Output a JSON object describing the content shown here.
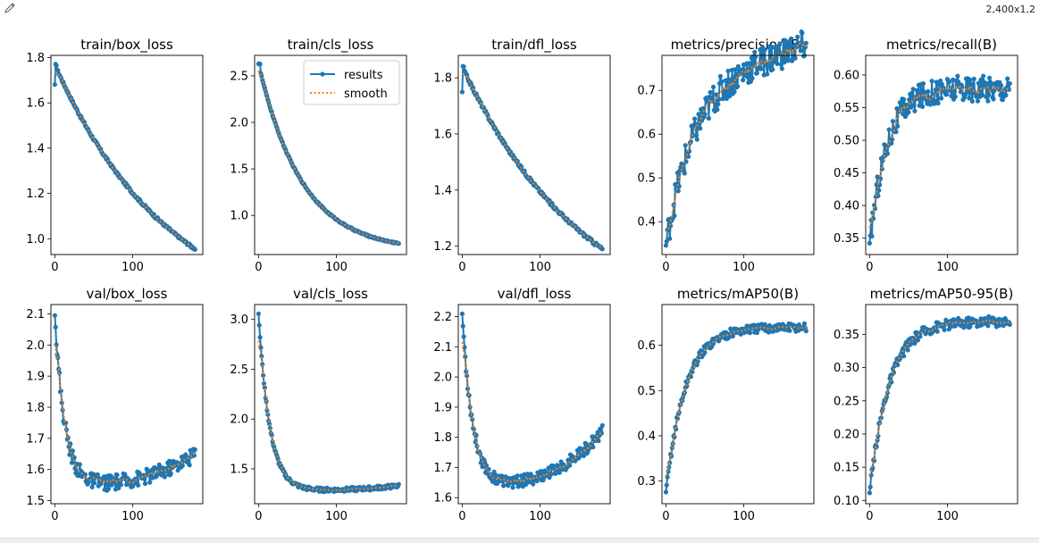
{
  "toolbar": {
    "icon": "pencil-icon",
    "dimensions_text": "2,400x1,2"
  },
  "colors": {
    "results": "#1f77b4",
    "smooth": "#ff7f0e",
    "axis": "#000000"
  },
  "legend": {
    "results": "results",
    "smooth": "smooth"
  },
  "chart_data": [
    {
      "type": "line",
      "title": "train/box_loss",
      "xlim": [
        -5,
        190
      ],
      "ylim": [
        0.93,
        1.81
      ],
      "xticks": [
        0,
        100
      ],
      "yticks": [
        1.0,
        1.2,
        1.4,
        1.6,
        1.8
      ],
      "ytick_labels": [
        "1.0",
        "1.2",
        "1.4",
        "1.6",
        "1.8"
      ],
      "shape": "decay",
      "start": 1.68,
      "peak": 1.77,
      "end": 0.955,
      "curve": 1.2,
      "noise": 0.006
    },
    {
      "type": "line",
      "title": "train/cls_loss",
      "xlim": [
        -5,
        190
      ],
      "ylim": [
        0.58,
        2.72
      ],
      "xticks": [
        0,
        100
      ],
      "yticks": [
        1.0,
        1.5,
        2.0,
        2.5
      ],
      "ytick_labels": [
        "1.0",
        "1.5",
        "2.0",
        "2.5"
      ],
      "shape": "decay",
      "start": 2.63,
      "peak": 2.63,
      "end": 0.7,
      "curve": 3.2,
      "noise": 0.008,
      "legend": true
    },
    {
      "type": "line",
      "title": "train/dfl_loss",
      "xlim": [
        -5,
        190
      ],
      "ylim": [
        1.17,
        1.88
      ],
      "xticks": [
        0,
        100
      ],
      "yticks": [
        1.2,
        1.4,
        1.6,
        1.8
      ],
      "ytick_labels": [
        "1.2",
        "1.4",
        "1.6",
        "1.8"
      ],
      "shape": "decay",
      "start": 1.75,
      "peak": 1.84,
      "end": 1.19,
      "curve": 1.1,
      "noise": 0.006
    },
    {
      "type": "line",
      "title": "metrics/precision(B)",
      "xlim": [
        -5,
        190
      ],
      "ylim": [
        0.325,
        0.78
      ],
      "xticks": [
        0,
        100
      ],
      "yticks": [
        0.4,
        0.5,
        0.6,
        0.7
      ],
      "ytick_labels": [
        "0.4",
        "0.5",
        "0.6",
        "0.7"
      ],
      "shape": "rise",
      "start": 0.345,
      "plateau": 0.715,
      "rate": 0.028,
      "slope": 0.0005,
      "noise": 0.035
    },
    {
      "type": "line",
      "title": "metrics/recall(B)",
      "xlim": [
        -5,
        190
      ],
      "ylim": [
        0.325,
        0.63
      ],
      "xticks": [
        0,
        100
      ],
      "yticks": [
        0.35,
        0.4,
        0.45,
        0.5,
        0.55,
        0.6
      ],
      "ytick_labels": [
        "0.35",
        "0.40",
        "0.45",
        "0.50",
        "0.55",
        "0.60"
      ],
      "shape": "rise",
      "start": 0.34,
      "plateau": 0.58,
      "rate": 0.045,
      "slope": 0,
      "noise": 0.02
    },
    {
      "type": "line",
      "title": "val/box_loss",
      "xlim": [
        -5,
        190
      ],
      "ylim": [
        1.49,
        2.13
      ],
      "xticks": [
        0,
        100
      ],
      "yticks": [
        1.5,
        1.6,
        1.7,
        1.8,
        1.9,
        2.0,
        2.1
      ],
      "ytick_labels": [
        "1.5",
        "1.6",
        "1.7",
        "1.8",
        "1.9",
        "2.0",
        "2.1"
      ],
      "shape": "uvalley",
      "start": 2.1,
      "low": 1.55,
      "end": 1.65,
      "rate": 0.08,
      "noise": 0.025
    },
    {
      "type": "line",
      "title": "val/cls_loss",
      "xlim": [
        -5,
        190
      ],
      "ylim": [
        1.15,
        3.15
      ],
      "xticks": [
        0,
        100
      ],
      "yticks": [
        1.5,
        2.0,
        2.5,
        3.0
      ],
      "ytick_labels": [
        "1.5",
        "2.0",
        "2.5",
        "3.0"
      ],
      "shape": "uvalley",
      "start": 3.06,
      "low": 1.28,
      "end": 1.33,
      "rate": 0.07,
      "noise": 0.02
    },
    {
      "type": "line",
      "title": "val/dfl_loss",
      "xlim": [
        -5,
        190
      ],
      "ylim": [
        1.58,
        2.24
      ],
      "xticks": [
        0,
        100
      ],
      "yticks": [
        1.6,
        1.7,
        1.8,
        1.9,
        2.0,
        2.1,
        2.2
      ],
      "ytick_labels": [
        "1.6",
        "1.7",
        "1.8",
        "1.9",
        "2.0",
        "2.1",
        "2.2"
      ],
      "shape": "uvalley",
      "start": 2.21,
      "low": 1.64,
      "end": 1.82,
      "rate": 0.075,
      "noise": 0.02
    },
    {
      "type": "line",
      "title": "metrics/mAP50(B)",
      "xlim": [
        -5,
        190
      ],
      "ylim": [
        0.25,
        0.69
      ],
      "xticks": [
        0,
        100
      ],
      "yticks": [
        0.3,
        0.4,
        0.5,
        0.6
      ],
      "ytick_labels": [
        "0.3",
        "0.4",
        "0.5",
        "0.6"
      ],
      "shape": "rise",
      "start": 0.275,
      "plateau": 0.64,
      "rate": 0.04,
      "slope": 0,
      "noise": 0.01
    },
    {
      "type": "line",
      "title": "metrics/mAP50-95(B)",
      "xlim": [
        -5,
        190
      ],
      "ylim": [
        0.095,
        0.395
      ],
      "xticks": [
        0,
        100
      ],
      "yticks": [
        0.1,
        0.15,
        0.2,
        0.25,
        0.3,
        0.35
      ],
      "ytick_labels": [
        "0.10",
        "0.15",
        "0.20",
        "0.25",
        "0.30",
        "0.35"
      ],
      "shape": "rise",
      "start": 0.11,
      "plateau": 0.37,
      "rate": 0.04,
      "slope": 0,
      "noise": 0.008
    }
  ]
}
